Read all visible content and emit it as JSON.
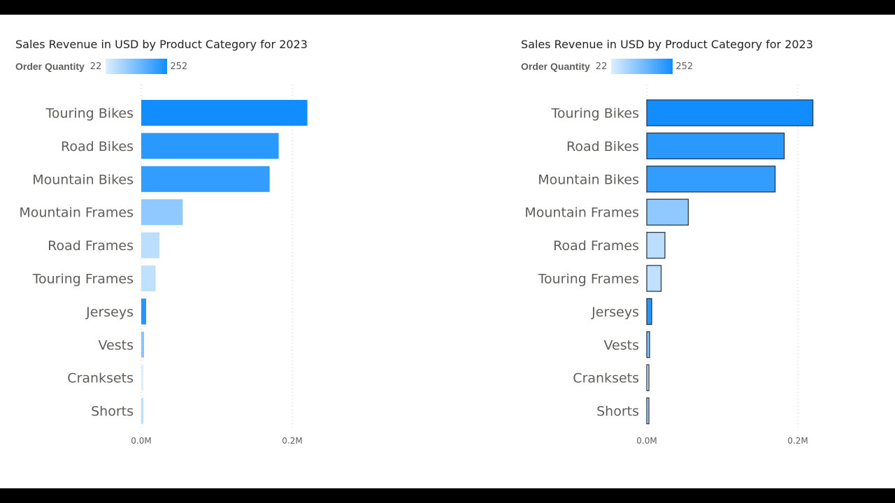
{
  "chart_data": [
    {
      "type": "bar",
      "orientation": "horizontal",
      "title": "Sales Revenue in USD by Product Category for 2023",
      "legend": {
        "title": "Order Quantity",
        "min_label": "22",
        "max_label": "252",
        "min": 22,
        "max": 252,
        "color_min": "#DDEEFF",
        "color_max": "#118DFF",
        "placement": "top-left"
      },
      "categories": [
        "Touring Bikes",
        "Road Bikes",
        "Mountain Bikes",
        "Mountain Frames",
        "Road Frames",
        "Touring Frames",
        "Jerseys",
        "Vests",
        "Cranksets",
        "Shorts"
      ],
      "values": [
        0.22,
        0.182,
        0.17,
        0.055,
        0.024,
        0.019,
        0.0065,
        0.0037,
        0.0028,
        0.0028
      ],
      "order_quantity": [
        252,
        225,
        215,
        110,
        60,
        55,
        230,
        120,
        22,
        60
      ],
      "xlim": [
        0,
        0.24
      ],
      "xticks": [
        0,
        0.2
      ],
      "xtick_labels": [
        "0.0M",
        "0.2M"
      ],
      "xlabel": "",
      "ylabel": "",
      "grid": "vertical dotted",
      "bar_border": false
    },
    {
      "type": "bar",
      "orientation": "horizontal",
      "title": "Sales Revenue in USD by Product Category for 2023",
      "legend": {
        "title": "Order Quantity",
        "min_label": "22",
        "max_label": "252",
        "min": 22,
        "max": 252,
        "color_min": "#DDEEFF",
        "color_max": "#118DFF",
        "placement": "top-left"
      },
      "categories": [
        "Touring Bikes",
        "Road Bikes",
        "Mountain Bikes",
        "Mountain Frames",
        "Road Frames",
        "Touring Frames",
        "Jerseys",
        "Vests",
        "Cranksets",
        "Shorts"
      ],
      "values": [
        0.22,
        0.182,
        0.17,
        0.055,
        0.024,
        0.019,
        0.0065,
        0.0037,
        0.0028,
        0.0028
      ],
      "order_quantity": [
        252,
        225,
        215,
        110,
        60,
        55,
        230,
        120,
        22,
        60
      ],
      "xlim": [
        0,
        0.24
      ],
      "xticks": [
        0,
        0.2
      ],
      "xtick_labels": [
        "0.0M",
        "0.2M"
      ],
      "xlabel": "",
      "ylabel": "",
      "grid": "vertical dotted",
      "bar_border": true,
      "border_color": "#2B3A4A"
    }
  ]
}
